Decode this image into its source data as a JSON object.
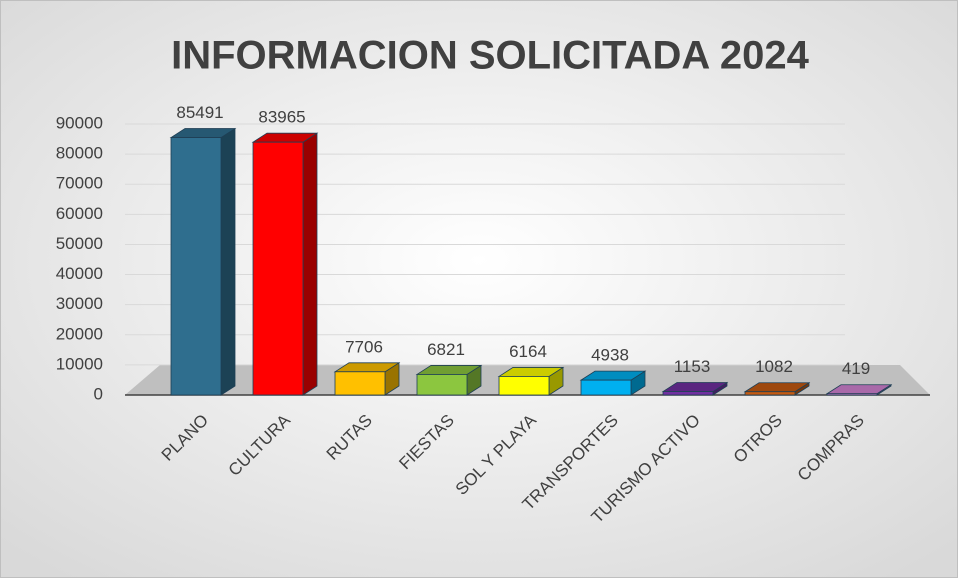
{
  "chart_data": {
    "type": "bar3d",
    "title": "INFORMACION SOLICITADA 2024",
    "categories": [
      "PLANO",
      "CULTURA",
      "RUTAS",
      "FIESTAS",
      "SOL Y PLAYA",
      "TRANSPORTES",
      "TURISMO ACTIVO",
      "OTROS",
      "COMPRAS"
    ],
    "values": [
      85491,
      83965,
      7706,
      6821,
      6164,
      4938,
      1153,
      1082,
      419
    ],
    "colors": [
      "#2f6e8e",
      "#ff0000",
      "#ffc000",
      "#8cc63f",
      "#ffff00",
      "#00b0f0",
      "#7030a0",
      "#c55a11",
      "#d383d3"
    ],
    "ylim": [
      0,
      90000
    ],
    "yticks": [
      0,
      10000,
      20000,
      30000,
      40000,
      50000,
      60000,
      70000,
      80000,
      90000
    ],
    "grid": true
  }
}
